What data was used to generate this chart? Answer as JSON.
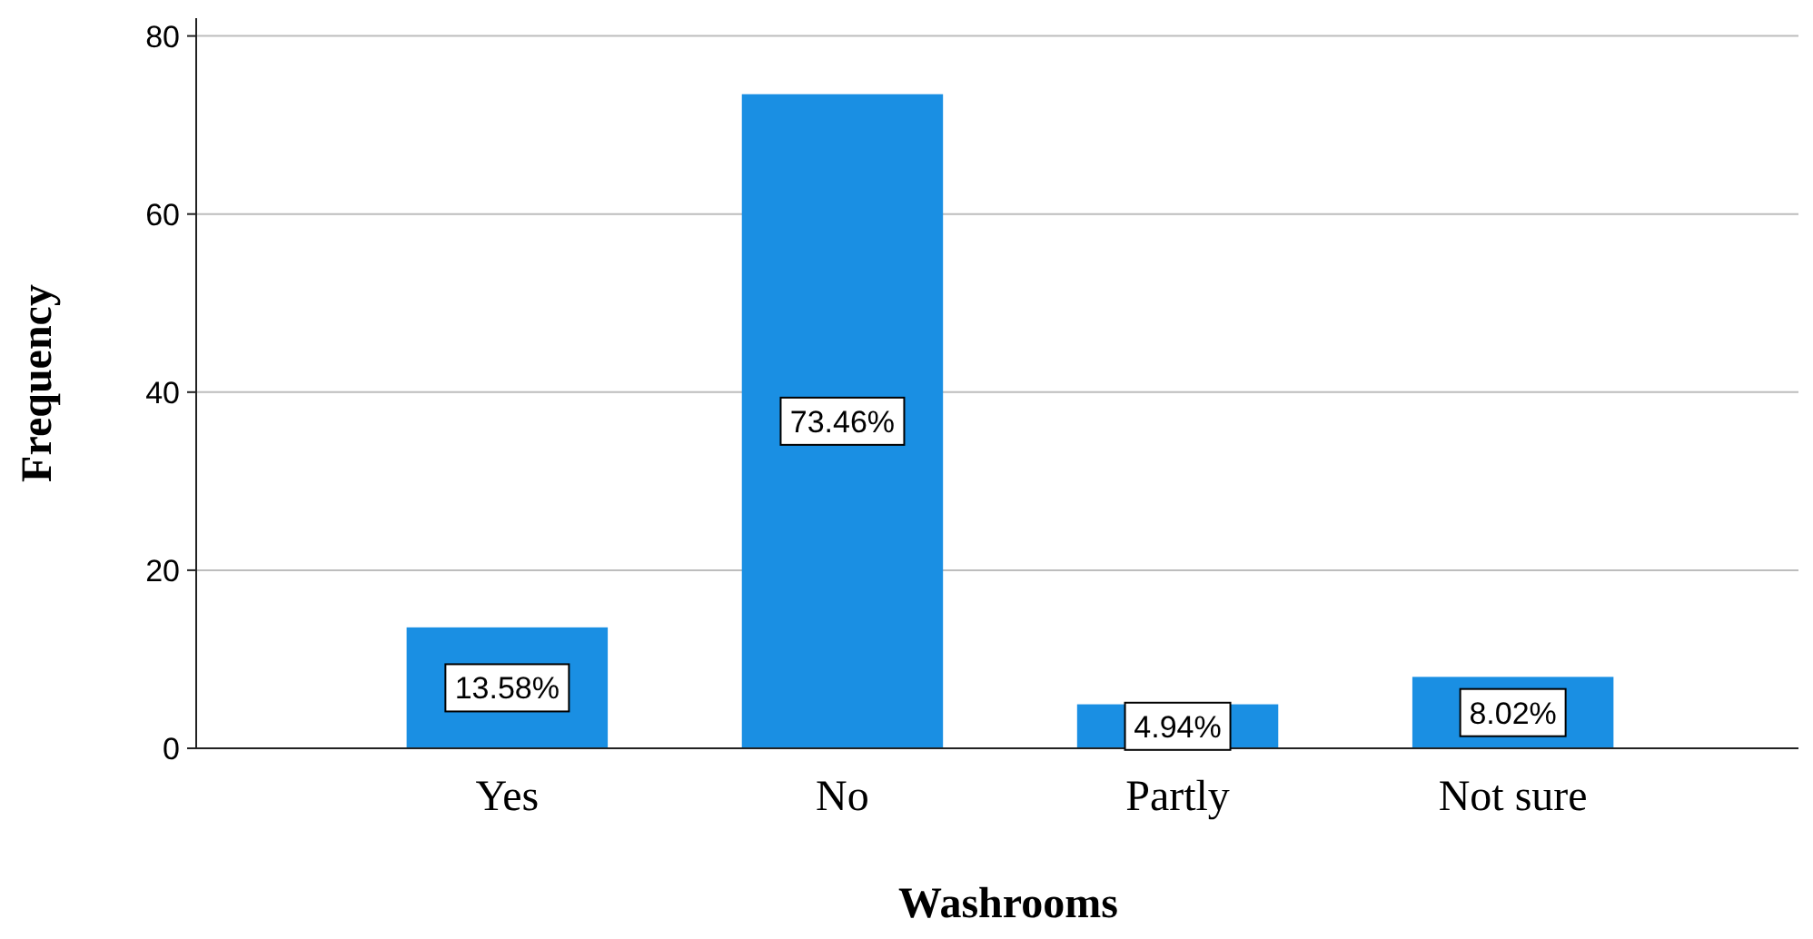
{
  "chart_data": {
    "type": "bar",
    "xlabel": "Washrooms",
    "ylabel": "Frequency",
    "categories": [
      "Yes",
      "No",
      "Partly",
      "Not sure"
    ],
    "values": [
      13.58,
      73.46,
      4.94,
      8.02
    ],
    "value_labels": [
      "13.58%",
      "73.46%",
      "4.94%",
      "8.02%"
    ],
    "color": "#1a8fe3",
    "ylim": [
      0,
      82
    ],
    "yticks": [
      0,
      20,
      40,
      60,
      80
    ],
    "grid": "y"
  }
}
